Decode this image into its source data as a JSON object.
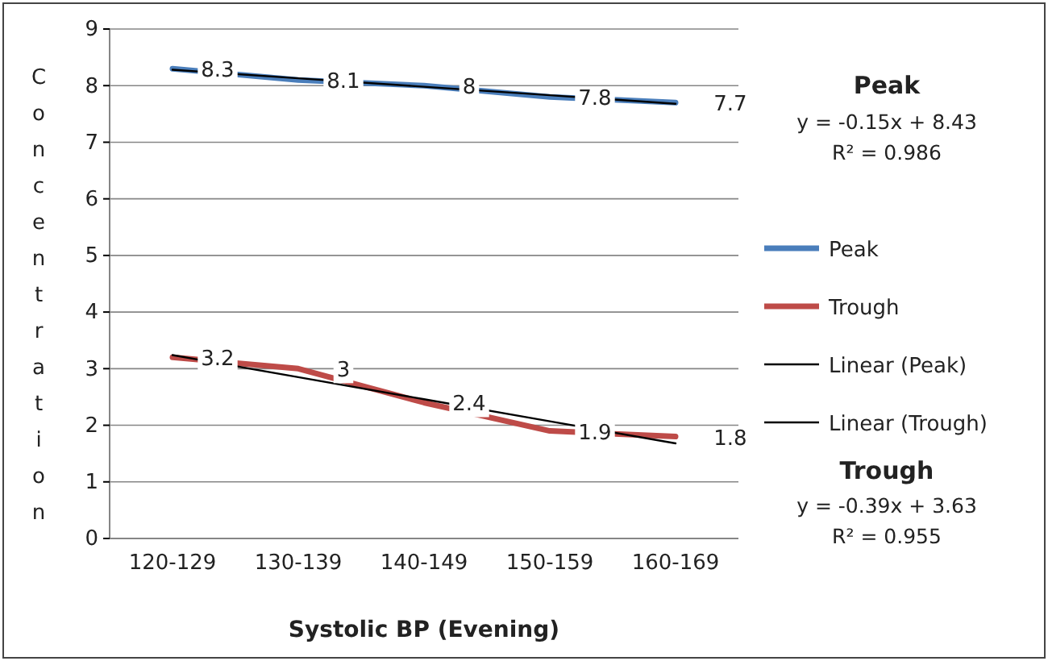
{
  "chart_data": {
    "type": "line",
    "xlabel": "Systolic BP (Evening)",
    "ylabel": "Concentration",
    "categories": [
      "120-129",
      "130-139",
      "140-149",
      "150-159",
      "160-169"
    ],
    "series": [
      {
        "name": "Peak",
        "color": "#4a7ebb",
        "values": [
          8.3,
          8.1,
          8,
          7.8,
          7.7
        ],
        "value_labels": [
          "8.3",
          "8.1",
          "8",
          "7.8",
          "7.7"
        ]
      },
      {
        "name": "Trough",
        "color": "#be4b48",
        "values": [
          3.2,
          3,
          2.4,
          1.9,
          1.8
        ],
        "value_labels": [
          "3.2",
          "3",
          "2.4",
          "1.9",
          "1.8"
        ]
      },
      {
        "name": "Linear (Peak)",
        "color": "#000000",
        "values": [
          8.28,
          8.13,
          7.98,
          7.83,
          7.68
        ]
      },
      {
        "name": "Linear (Trough)",
        "color": "#000000",
        "values": [
          3.24,
          2.85,
          2.46,
          2.07,
          1.68
        ]
      }
    ],
    "ylim": [
      0,
      9
    ],
    "yticks": [
      0,
      1,
      2,
      3,
      4,
      5,
      6,
      7,
      8,
      9
    ],
    "grid": "y",
    "legend": "right",
    "marker": "none",
    "line_style": "solid",
    "annotations": [
      "Peak",
      "y = -0.15x + 8.43",
      "R² = 0.986",
      "Trough",
      "y = -0.39x + 3.63",
      "R² = 0.955"
    ]
  }
}
